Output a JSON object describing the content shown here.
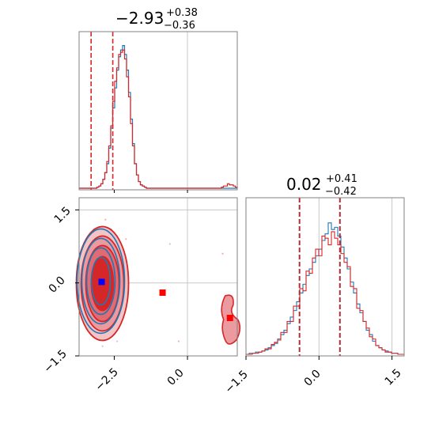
{
  "chart_data": {
    "type": "corner",
    "colors": {
      "series_a": "#1f77b4",
      "series_b": "#d62728",
      "marker_a": "#0000ff",
      "marker_b": "#ff0000",
      "quantile_line": "#b22d3c"
    },
    "param1": {
      "title_value": "−2.93",
      "title_plus": "+0.38",
      "title_minus": "−0.36",
      "median": -2.93,
      "quantiles": [
        -3.29,
        -2.55
      ],
      "range": [
        -3.7,
        1.7
      ],
      "ticks": [
        -2.5,
        0.0
      ],
      "tick_labels": [
        "−2.5",
        "0.0"
      ]
    },
    "param2": {
      "title_value": "0.02",
      "title_plus": "+0.41",
      "title_minus": "−0.42",
      "median": 0.02,
      "quantiles": [
        -0.4,
        0.43
      ],
      "range": [
        -1.5,
        1.75
      ],
      "ticks": [
        -1.5,
        0.0,
        1.5
      ],
      "tick_labels": [
        "−1.5",
        "0.0",
        "1.5"
      ]
    },
    "truth_lines": {
      "param1": 0.0,
      "param2": 0.0
    },
    "marginal_peak_hint": {
      "param2_secondary_line": 1.5,
      "param2_horizontal_line": 1.5
    },
    "blue_marker": {
      "x": -2.93,
      "y": 0.02
    },
    "red_markers": [
      {
        "x": -0.85,
        "y": -0.2
      },
      {
        "x": 1.45,
        "y": -0.72
      }
    ],
    "hist1_blue": [
      0,
      0,
      0,
      0,
      0,
      0,
      0,
      0,
      0,
      1,
      2,
      4,
      8,
      14,
      22,
      36,
      54,
      72,
      90,
      106,
      118,
      124,
      128,
      120,
      106,
      86,
      62,
      40,
      22,
      12,
      6,
      3,
      2,
      1,
      0,
      0,
      0,
      0,
      0,
      0,
      0,
      0,
      0,
      0,
      0,
      0,
      0,
      0,
      0,
      0,
      0,
      0,
      0,
      0,
      0,
      0,
      0,
      0,
      0,
      0,
      0,
      0,
      0,
      0,
      0,
      0,
      0,
      0,
      0,
      0,
      0,
      0,
      0,
      0,
      0,
      0,
      0,
      0,
      0,
      0
    ],
    "hist1_red": [
      0,
      0,
      0,
      0,
      0,
      0,
      0,
      0,
      0,
      1,
      2,
      4,
      8,
      14,
      24,
      38,
      56,
      78,
      96,
      108,
      120,
      122,
      124,
      116,
      100,
      82,
      58,
      38,
      22,
      12,
      6,
      3,
      2,
      1,
      0,
      0,
      0,
      0,
      0,
      0,
      0,
      0,
      0,
      0,
      0,
      0,
      0,
      0,
      0,
      0,
      0,
      0,
      0,
      0,
      0,
      0,
      0,
      0,
      0,
      0,
      0,
      0,
      0,
      0,
      0,
      0,
      0,
      0,
      0,
      0,
      0,
      0,
      1,
      2,
      2,
      4,
      3,
      3,
      2,
      1
    ],
    "hist2_blue": [
      0,
      1,
      1,
      2,
      2,
      3,
      4,
      6,
      8,
      10,
      14,
      18,
      22,
      28,
      34,
      40,
      48,
      56,
      64,
      72,
      78,
      84,
      90,
      96,
      104,
      110,
      120,
      114,
      116,
      108,
      98,
      88,
      78,
      66,
      56,
      46,
      38,
      30,
      22,
      18,
      12,
      8,
      6,
      4,
      3,
      2,
      1,
      1,
      0,
      0
    ],
    "hist2_red": [
      0,
      0,
      1,
      1,
      2,
      3,
      5,
      5,
      9,
      11,
      13,
      20,
      20,
      30,
      30,
      44,
      44,
      60,
      58,
      76,
      74,
      88,
      96,
      90,
      108,
      106,
      100,
      112,
      106,
      100,
      92,
      84,
      80,
      62,
      60,
      42,
      40,
      30,
      24,
      16,
      14,
      8,
      6,
      4,
      2,
      2,
      1,
      1,
      0,
      0
    ]
  }
}
